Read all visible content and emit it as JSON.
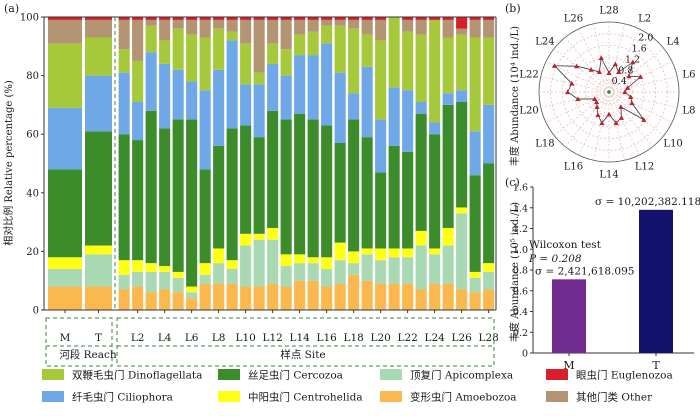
{
  "panels": {
    "a": "(a)",
    "b": "(b)",
    "c": "(c)"
  },
  "colors": {
    "Dinoflagellata": "#a5c93a",
    "Cercozoa": "#3c8c2c",
    "Apicomplexa": "#a9d9b3",
    "Euglenozoa": "#d81e2a",
    "Ciliophora": "#6fa8e6",
    "Centrohelida": "#ffff14",
    "Amoebozoa": "#fbb84f",
    "Other": "#b39574",
    "barM": "#712a90",
    "barT": "#13136e",
    "radarLine": "#c0202e",
    "radarGrid": "#e5b8b8"
  },
  "chart_data": [
    {
      "panel": "a",
      "type": "bar",
      "stacked": true,
      "ylabel": "相对比例 Relative percentage (%)",
      "ylim": [
        0,
        100
      ],
      "yticks": [
        0,
        20,
        40,
        60,
        80,
        100
      ],
      "categories": [
        "M",
        "T",
        "L1",
        "L2",
        "L3",
        "L4",
        "L5",
        "L6",
        "L7",
        "L8",
        "L9",
        "L10",
        "L11",
        "L12",
        "L13",
        "L14",
        "L15",
        "L16",
        "L17",
        "L18",
        "L19",
        "L20",
        "L21",
        "L22",
        "L23",
        "L24",
        "L25",
        "L26",
        "L27",
        "L28"
      ],
      "shown_tick_labels": [
        "M",
        "T",
        "L2",
        "L4",
        "L6",
        "L8",
        "L10",
        "L12",
        "L14",
        "L16",
        "L18",
        "L20",
        "L22",
        "L24",
        "L26",
        "L28"
      ],
      "group_labels": {
        "reach": "河段 Reach",
        "site": "样点 Site"
      },
      "series": [
        {
          "key": "Amoebozoa",
          "name": "变形虫门 Amoebozoa",
          "values": [
            8,
            8,
            7,
            8,
            6,
            7,
            6,
            4,
            9,
            9,
            9,
            8,
            8,
            9,
            8,
            10,
            10,
            8,
            9,
            12,
            10,
            9,
            9,
            9,
            7,
            9,
            9,
            7,
            6,
            7
          ]
        },
        {
          "key": "Apicomplexa",
          "name": "顶复门 Apicomplexa",
          "values": [
            6,
            11,
            5,
            5,
            7,
            6,
            5,
            2,
            3,
            7,
            5,
            14,
            16,
            15,
            7,
            6,
            6,
            6,
            8,
            4,
            9,
            8,
            9,
            9,
            15,
            10,
            13,
            26,
            5,
            6
          ]
        },
        {
          "key": "Centrohelida",
          "name": "中阳虫门 Centrohelida",
          "values": [
            4,
            3,
            5,
            4,
            3,
            2,
            2,
            2,
            4,
            5,
            3,
            4,
            2,
            4,
            4,
            3,
            2,
            4,
            6,
            4,
            2,
            4,
            3,
            3,
            5,
            2,
            6,
            2,
            2,
            3
          ]
        },
        {
          "key": "Cercozoa",
          "name": "丝足虫门 Cercozoa",
          "values": [
            30,
            39,
            43,
            41,
            52,
            47,
            52,
            57,
            32,
            35,
            45,
            37,
            33,
            40,
            46,
            48,
            47,
            45,
            34,
            45,
            38,
            26,
            35,
            33,
            40,
            39,
            42,
            36,
            33,
            34
          ]
        },
        {
          "key": "Ciliophora",
          "name": "纤毛虫门 Ciliophora",
          "values": [
            21,
            19,
            21,
            13,
            20,
            22,
            17,
            13,
            27,
            26,
            30,
            14,
            18,
            16,
            15,
            20,
            22,
            28,
            24,
            9,
            24,
            18,
            20,
            21,
            4,
            4,
            4,
            4,
            15,
            20
          ]
        },
        {
          "key": "Dinoflagellata",
          "name": "双鞭毛虫门 Dinoflagellata",
          "values": [
            22,
            13,
            8,
            14,
            9,
            8,
            14,
            16,
            18,
            14,
            3,
            14,
            4,
            7,
            9,
            7,
            8,
            6,
            16,
            22,
            11,
            27,
            24,
            20,
            23,
            35,
            19,
            19,
            32,
            23
          ]
        },
        {
          "key": "Other",
          "name": "其他门类 Other",
          "values": [
            8,
            6,
            10,
            14,
            2,
            7,
            3,
            5,
            6,
            3,
            4,
            8,
            18,
            8,
            10,
            5,
            4,
            2,
            2,
            3,
            5,
            7,
            0,
            4,
            5,
            0,
            6,
            2,
            6,
            6
          ]
        },
        {
          "key": "Euglenozoa",
          "name": "眼虫门 Euglenozoa",
          "values": [
            1,
            1,
            1,
            1,
            1,
            1,
            1,
            1,
            1,
            1,
            1,
            1,
            1,
            1,
            1,
            1,
            1,
            1,
            1,
            1,
            1,
            1,
            0,
            1,
            1,
            1,
            1,
            4,
            1,
            1
          ]
        }
      ]
    },
    {
      "panel": "b",
      "type": "radar",
      "ylabel": "丰度 Abundance (10⁴ ind./L)",
      "radial_ticks": [
        "0.4",
        "0.8",
        "1.2",
        "1.6",
        "2.0"
      ],
      "rmax": 2.2,
      "shown_axis_labels": [
        "L2",
        "L4",
        "L6",
        "L8",
        "L10",
        "L12",
        "L14",
        "L16",
        "L18",
        "L20",
        "L22",
        "L24",
        "L26",
        "L28"
      ],
      "categories": [
        "L1",
        "L2",
        "L3",
        "L4",
        "L5",
        "L6",
        "L7",
        "L8",
        "L9",
        "L10",
        "L11",
        "L12",
        "L13",
        "L14",
        "L15",
        "L16",
        "L17",
        "L18",
        "L19",
        "L20",
        "L21",
        "L22",
        "L23",
        "L24",
        "L25",
        "L26",
        "L27",
        "L28"
      ],
      "values": [
        0.9,
        0.7,
        1.2,
        0.8,
        1.1,
        0.6,
        0.5,
        0.7,
        0.8,
        1.4,
        0.6,
        0.9,
        1.0,
        0.7,
        1.0,
        0.8,
        0.6,
        0.5,
        0.5,
        1.0,
        1.3,
        1.2,
        1.9,
        1.3,
        0.9,
        0.7,
        1.1,
        0.6
      ]
    },
    {
      "panel": "c",
      "type": "bar",
      "ylabel": "丰度 Abundance (10⁵ ind./L)",
      "ylim": [
        0,
        1.6
      ],
      "yticks": [
        "0",
        "0.2",
        "0.4",
        "0.6",
        "0.8",
        "1.0",
        "1.2",
        "1.4",
        "1.6"
      ],
      "categories": [
        "M",
        "T"
      ],
      "values": [
        0.71,
        1.38
      ],
      "sigma_labels": [
        "σ = 2,421,618.095",
        "σ = 10,202,382.118"
      ],
      "test_label": "Wilcoxon test",
      "p_label": "P = 0.208"
    }
  ]
}
